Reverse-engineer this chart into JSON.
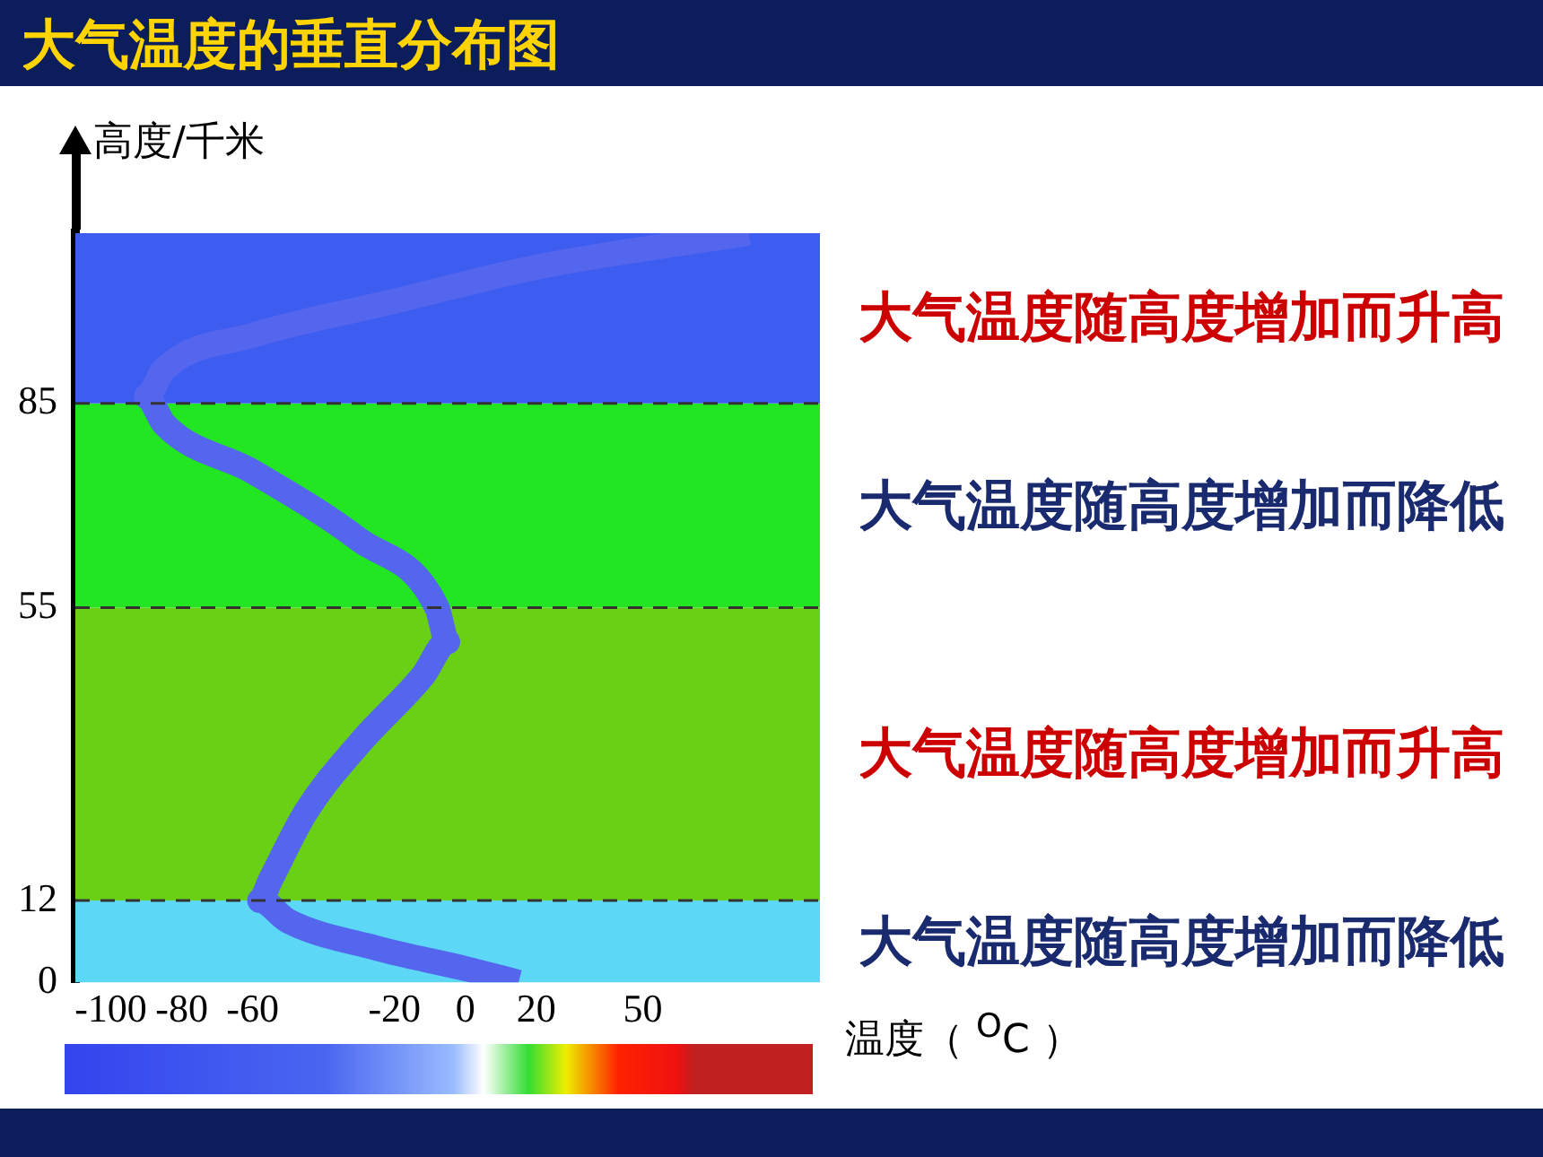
{
  "chart_data": {
    "type": "line",
    "title": "大气温度的垂直分布图",
    "xlabel": "温度（ $^{O}$C ）",
    "ylabel": "高度/千米",
    "series": [
      {
        "color": "#5566ee",
        "x": [
          15,
          0,
          -25,
          -50,
          -58,
          -55,
          -45,
          -30,
          -12,
          -5,
          -8,
          -30,
          -60,
          -85,
          -90,
          -85,
          -60,
          -20,
          20,
          80
        ],
        "values": [
          0,
          2,
          5,
          9,
          12,
          15,
          25,
          35,
          45,
          50,
          55,
          65,
          75,
          82,
          86,
          90,
          95,
          100,
          105,
          110
        ]
      }
    ],
    "xlim": [
      -110,
      100
    ],
    "xticks": [
      -100,
      -80,
      -60,
      -20,
      0,
      20,
      50
    ],
    "ylim": [
      0,
      110
    ],
    "yticks": [
      0,
      12,
      55,
      85
    ],
    "bands": [
      {
        "axis": "y",
        "from": 0,
        "to": 12,
        "label": "大气温度随高度增加而降低",
        "color": "#5cd8f6"
      },
      {
        "axis": "y",
        "from": 12,
        "to": 55,
        "label": "大气温度随高度增加而升高",
        "color": "#6ad015"
      },
      {
        "axis": "y",
        "from": 55,
        "to": 85,
        "label": "大气温度随高度增加而降低",
        "color": "#22e622"
      },
      {
        "axis": "y",
        "from": 85,
        "to": 110,
        "label": "大气温度随高度增加而升高",
        "color": "#3d5cf0"
      }
    ],
    "ref_lines": [
      {
        "axis": "y",
        "value": 12,
        "color": "#333333",
        "line_style": "dashed"
      },
      {
        "axis": "y",
        "value": 55,
        "color": "#333333",
        "line_style": "dashed"
      },
      {
        "axis": "y",
        "value": 85,
        "color": "#333333",
        "line_style": "dashed"
      }
    ],
    "grid": false,
    "legend": false,
    "marker": "none",
    "line_style": "solid"
  }
}
